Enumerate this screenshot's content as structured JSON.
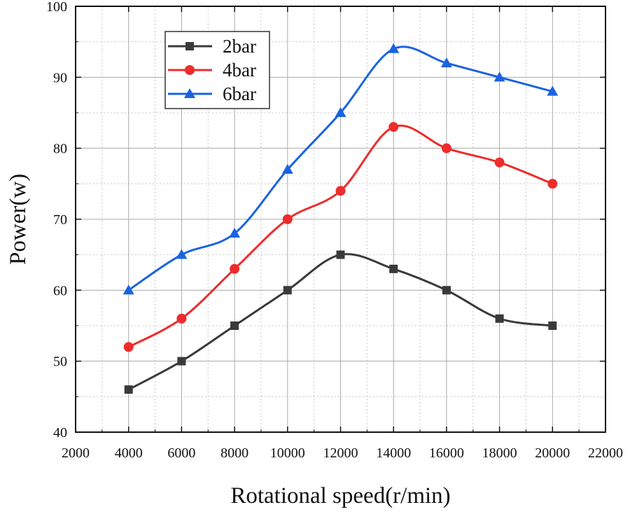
{
  "chart_data": {
    "type": "line",
    "title": "",
    "xlabel": "Rotational speed(r/min)",
    "ylabel": "Power(w)",
    "xlim": [
      2000,
      22000
    ],
    "ylim": [
      40,
      100
    ],
    "xticks": [
      2000,
      4000,
      6000,
      8000,
      10000,
      12000,
      14000,
      16000,
      18000,
      20000,
      22000
    ],
    "yticks": [
      40,
      50,
      60,
      70,
      80,
      90,
      100
    ],
    "grid": true,
    "legend_position": "top-left",
    "x": [
      4000,
      6000,
      8000,
      10000,
      12000,
      14000,
      16000,
      18000,
      20000
    ],
    "series": [
      {
        "name": "2bar",
        "marker": "square",
        "color": "#3a3a3a",
        "values": [
          46,
          50,
          55,
          60,
          65,
          63,
          60,
          56,
          55
        ]
      },
      {
        "name": "4bar",
        "marker": "circle",
        "color": "#ee2c2c",
        "values": [
          52,
          56,
          63,
          70,
          74,
          83,
          80,
          78,
          75
        ]
      },
      {
        "name": "6bar",
        "marker": "triangle",
        "color": "#1a63e0",
        "values": [
          60,
          65,
          68,
          77,
          85,
          94,
          92,
          90,
          88
        ]
      }
    ]
  }
}
